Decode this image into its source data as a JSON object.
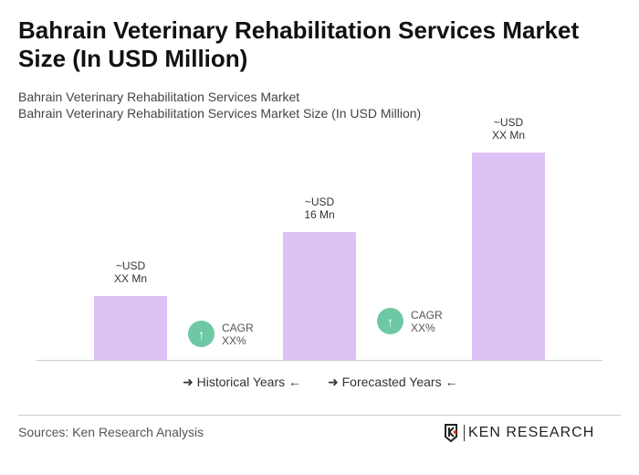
{
  "title": "Bahrain Veterinary Rehabilitation Services Market Size (In USD Million)",
  "subtitle1": "Bahrain Veterinary Rehabilitation Services Market",
  "subtitle2": "Bahrain Veterinary Rehabilitation Services Market Size (In USD Million)",
  "chart_data": {
    "type": "bar",
    "categories": [
      "",
      "",
      ""
    ],
    "values": [
      8,
      16,
      26
    ],
    "data_labels": [
      [
        "~USD",
        "XX Mn"
      ],
      [
        "~USD",
        "16 Mn"
      ],
      [
        "~USD",
        "XX Mn"
      ]
    ],
    "bar_color": "#dcc1f5",
    "cagr": [
      {
        "label": "CAGR",
        "value": "XX%"
      },
      {
        "label": "CAGR",
        "value": "XX%"
      }
    ],
    "legend": [
      "Historical Years",
      "Forecasted Years"
    ],
    "cagr_color": "#6fc8a4"
  },
  "source": "Sources: Ken Research Analysis",
  "logo_text": "KEN RESEARCH"
}
